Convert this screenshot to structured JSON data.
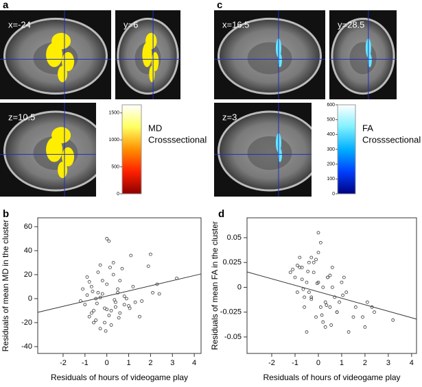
{
  "panels": [
    "a",
    "b",
    "c",
    "d"
  ],
  "brain_images": [
    {
      "panel": 0,
      "views": [
        "x=-24",
        "y=6",
        "z=10.5"
      ]
    },
    {
      "panel": 2,
      "views": [
        "x=16.5",
        "y=28.5",
        "z=3"
      ]
    }
  ],
  "colorbars": [
    {
      "label": [
        "MD",
        "Crosssectional"
      ],
      "lim": [
        0,
        1650
      ],
      "ticks": [
        0,
        500,
        1000,
        1500
      ],
      "colors": [
        "#8b0000",
        "#ff2000",
        "#ff9000",
        "#ffff60",
        "#ffffff"
      ]
    },
    {
      "label": [
        "FA",
        "Crosssectional"
      ],
      "lim": [
        0,
        600
      ],
      "ticks": [
        0,
        100,
        200,
        300,
        400,
        500,
        600
      ],
      "colors": [
        "#000080",
        "#0040ff",
        "#00b0ff",
        "#80f0ff",
        "#ffffff"
      ]
    }
  ],
  "chart_data": [
    {
      "type": "scatter",
      "x_label": "Residuals of hours of videogame play",
      "y_label": "Residuals of mean MD in the cluster",
      "color": "#333333",
      "xlim": [
        -3.16,
        4.31
      ],
      "ylim": [
        -45.7,
        67.4
      ],
      "xticks": [
        -2,
        -1,
        0,
        1,
        2,
        3,
        4
      ],
      "yticks": [
        -40,
        -20,
        0,
        20,
        40,
        60
      ],
      "x": [
        -1.0,
        -0.9,
        -0.8,
        -0.7,
        -0.6,
        -0.5,
        -0.4,
        -0.3,
        -0.2,
        -0.1,
        0,
        0.1,
        0.2,
        0.3,
        0.4,
        0.5,
        0.6,
        0.7,
        0.8,
        1.0,
        1.2,
        1.5,
        2.0,
        2.1,
        3.2,
        -1.2,
        -0.5,
        -0.3,
        0.0,
        0.2,
        0.4,
        -0.8,
        -0.6,
        -0.2,
        0.1,
        0.6,
        0.9,
        1.1,
        1.3,
        -1.1,
        -0.7,
        -0.4,
        -0.1,
        0.3,
        0.5,
        0.8,
        1.6,
        2.3,
        -0.9,
        -0.3,
        0.0,
        0.15,
        -0.05,
        0.55,
        1.05,
        1.9,
        2.4,
        -0.45,
        -0.65,
        0.35
      ],
      "y": [
        -5,
        3,
        -15,
        10,
        -20,
        0,
        5,
        -25,
        15,
        -8,
        50,
        48,
        -10,
        20,
        -3,
        8,
        -12,
        25,
        2,
        -6,
        10,
        -15,
        37,
        5,
        17,
        -2,
        -18,
        28,
        12,
        -22,
        -7,
        14,
        -10,
        4,
        -14,
        15,
        0,
        36,
        -3,
        8,
        -12,
        22,
        -20,
        30,
        5,
        -5,
        -2,
        12,
        18,
        1,
        -9,
        26,
        -27,
        -16,
        -8,
        27,
        4,
        -4,
        6,
        -1
      ],
      "fit_line": {
        "x": [
          -3.16,
          4.31
        ],
        "y": [
          -11.4,
          20.6
        ]
      }
    },
    {
      "type": "scatter",
      "x_label": "Residuals of hours of videogame play",
      "y_label": "Residuals of mean FA in the cluster",
      "color": "#333333",
      "xlim": [
        -3.06,
        4.21
      ],
      "ylim": [
        -0.0666,
        0.07
      ],
      "xticks": [
        -2,
        -1,
        0,
        1,
        2,
        3,
        4
      ],
      "yticks": [
        -0.05,
        -0.025,
        0,
        0.025,
        0.05
      ],
      "x": [
        -1.0,
        -0.9,
        -0.8,
        -0.7,
        -0.6,
        -0.5,
        -0.4,
        -0.3,
        -0.2,
        -0.1,
        0,
        0.1,
        0.2,
        0.3,
        0.4,
        0.5,
        0.6,
        0.7,
        0.8,
        1.0,
        1.2,
        1.5,
        2.0,
        2.1,
        3.2,
        -1.2,
        -0.5,
        -0.3,
        0.0,
        0.2,
        0.4,
        -0.8,
        -0.6,
        -0.2,
        0.1,
        0.6,
        0.9,
        1.1,
        1.3,
        -1.1,
        -0.7,
        -0.4,
        -0.1,
        0.3,
        0.5,
        0.8,
        1.6,
        2.3,
        -0.9,
        -0.3,
        0.0,
        0.15,
        -0.05,
        0.55,
        1.05,
        1.9,
        2.4,
        -0.45,
        -0.65,
        0.35
      ],
      "y": [
        0.01,
        -0.005,
        0.03,
        0.02,
        -0.02,
        0.005,
        0.025,
        -0.01,
        0.015,
        -0.03,
        0.055,
        0.045,
        0,
        -0.015,
        0.01,
        -0.02,
        0.02,
        -0.01,
        -0.025,
        0.005,
        -0.005,
        -0.03,
        -0.04,
        -0.015,
        -0.033,
        0.015,
        -0.045,
        0.03,
        0.005,
        -0.035,
        0.01,
        0.02,
        -0.01,
        0.025,
        -0.02,
        0,
        -0.015,
        0.01,
        -0.045,
        0.018,
        0.008,
        -0.005,
        0.028,
        -0.04,
        0.012,
        -0.025,
        -0.02,
        -0.02,
        0.022,
        -0.012,
        0.035,
        -0.028,
        0.004,
        -0.038,
        -0.008,
        -0.03,
        -0.025,
        0.016,
        -0.002,
        -0.018
      ],
      "fit_line": {
        "x": [
          -3.06,
          4.21
        ],
        "y": [
          0.0155,
          -0.032
        ]
      }
    }
  ]
}
